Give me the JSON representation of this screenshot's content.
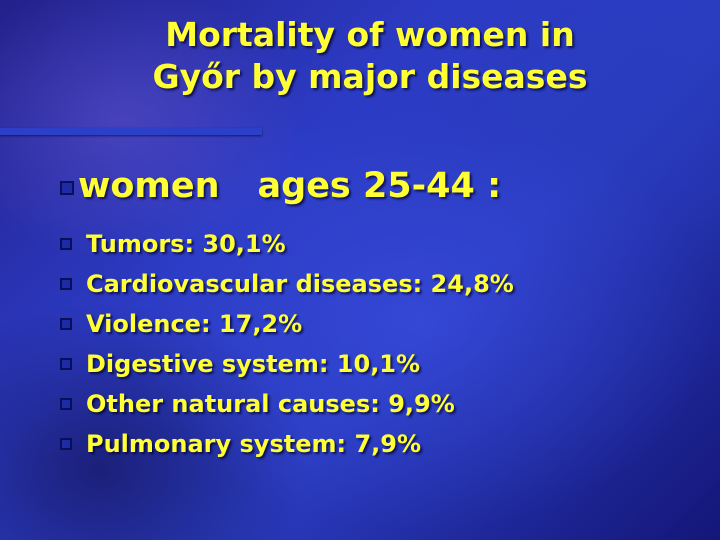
{
  "title": {
    "line1": "Mortality of women in",
    "line2": "Győr by major diseases"
  },
  "subheading": {
    "word": "women",
    "rest": "ages 25-44 :"
  },
  "items": [
    {
      "label": "Tumors: 30,1%"
    },
    {
      "label": "Cardiovascular diseases: 24,8%"
    },
    {
      "label": "Violence: 17,2%"
    },
    {
      "label": "Digestive system: 10,1%"
    },
    {
      "label": "Other natural causes: 9,9%"
    },
    {
      "label": "Pulmonary system: 7,9%"
    }
  ],
  "colors": {
    "text": "#ffff33",
    "background": "#2a3cc0",
    "bullet": "#1d2ba8"
  },
  "icons": {
    "bullet": "square-bullet-icon"
  }
}
